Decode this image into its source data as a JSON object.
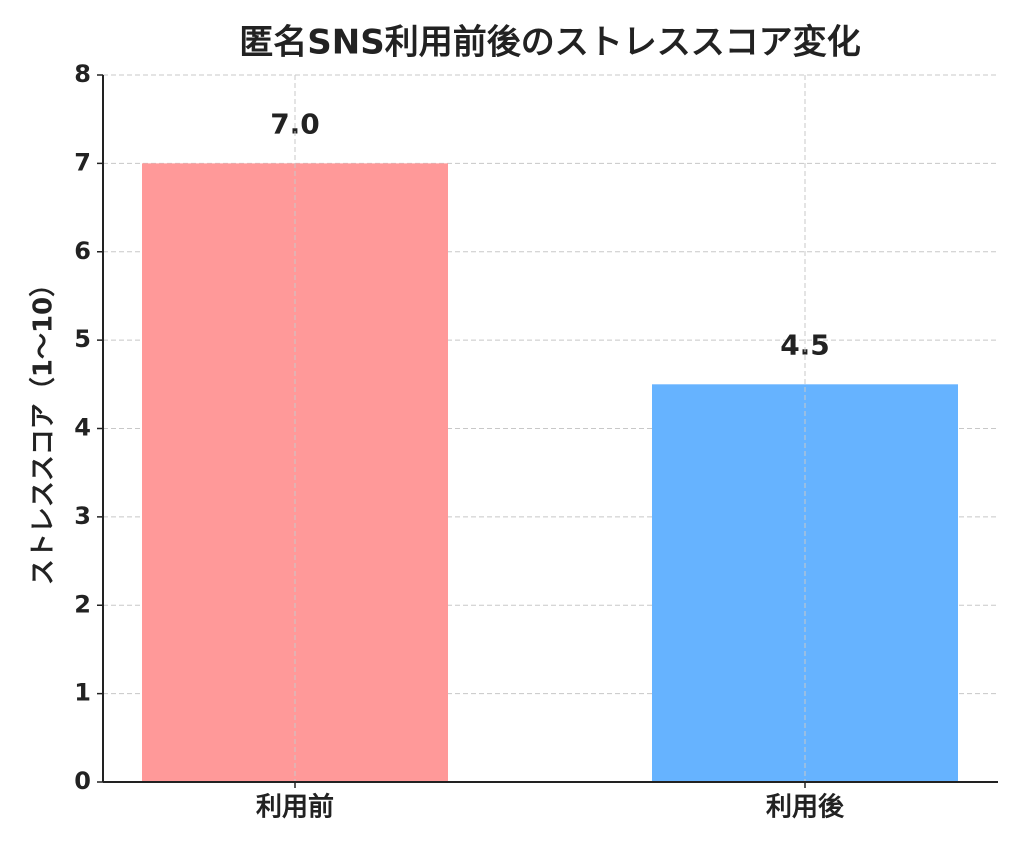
{
  "chart_data": {
    "type": "bar",
    "title": "匿名SNS利用前後のストレススコア変化",
    "y_label": "ストレススコア（1〜10）",
    "categories": [
      "利用前",
      "利用後"
    ],
    "values": [
      7.0,
      4.5
    ],
    "value_labels": [
      "7.0",
      "4.5"
    ],
    "colors": [
      "#ff9999",
      "#66b3ff"
    ],
    "ylim": [
      0,
      8
    ],
    "yticks": [
      0,
      1,
      2,
      3,
      4,
      5,
      6,
      7,
      8
    ],
    "grid": true
  }
}
